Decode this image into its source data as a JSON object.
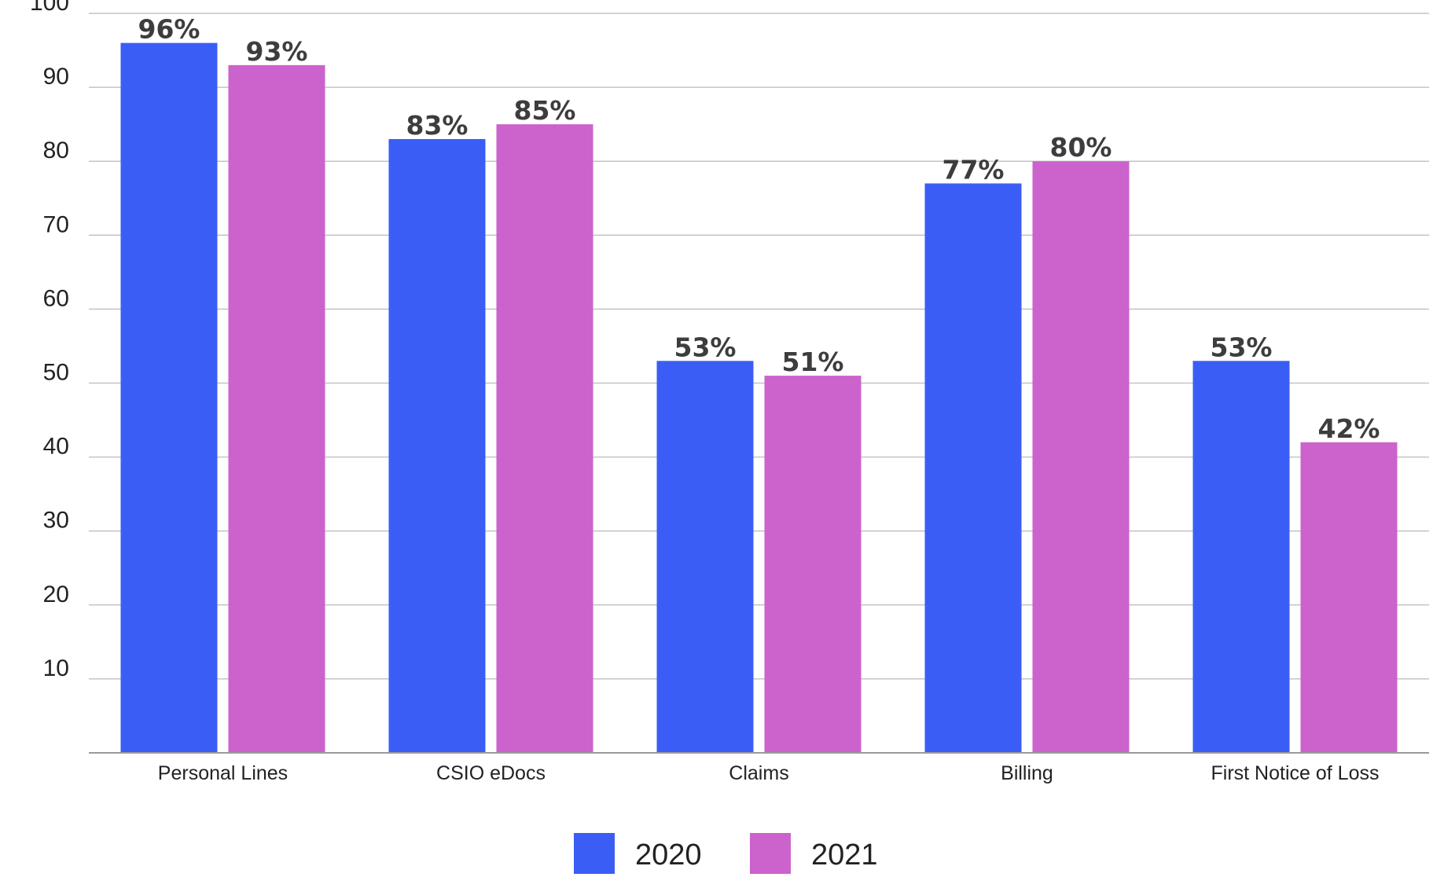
{
  "chart_data": {
    "type": "bar",
    "categories": [
      "Personal Lines",
      "CSIO eDocs",
      "Claims",
      "Billing",
      "First Notice of Loss"
    ],
    "series": [
      {
        "name": "2020",
        "values": [
          96,
          83,
          53,
          77,
          53
        ],
        "labels": [
          "96%",
          "83%",
          "53%",
          "77%",
          "53%"
        ],
        "color": "#3a5ef5"
      },
      {
        "name": "2021",
        "values": [
          93,
          85,
          51,
          80,
          42
        ],
        "labels": [
          "93%",
          "85%",
          "51%",
          "80%",
          "42%"
        ],
        "color": "#cc62cc"
      }
    ],
    "yticks": [
      "10",
      "20",
      "30",
      "40",
      "50",
      "60",
      "70",
      "80",
      "90",
      "100"
    ],
    "ylim": [
      0,
      100
    ],
    "grid": true,
    "legend_position": "bottom",
    "colors": {
      "grid": "#c4c4c4",
      "axis": "#9a9a9a"
    }
  }
}
